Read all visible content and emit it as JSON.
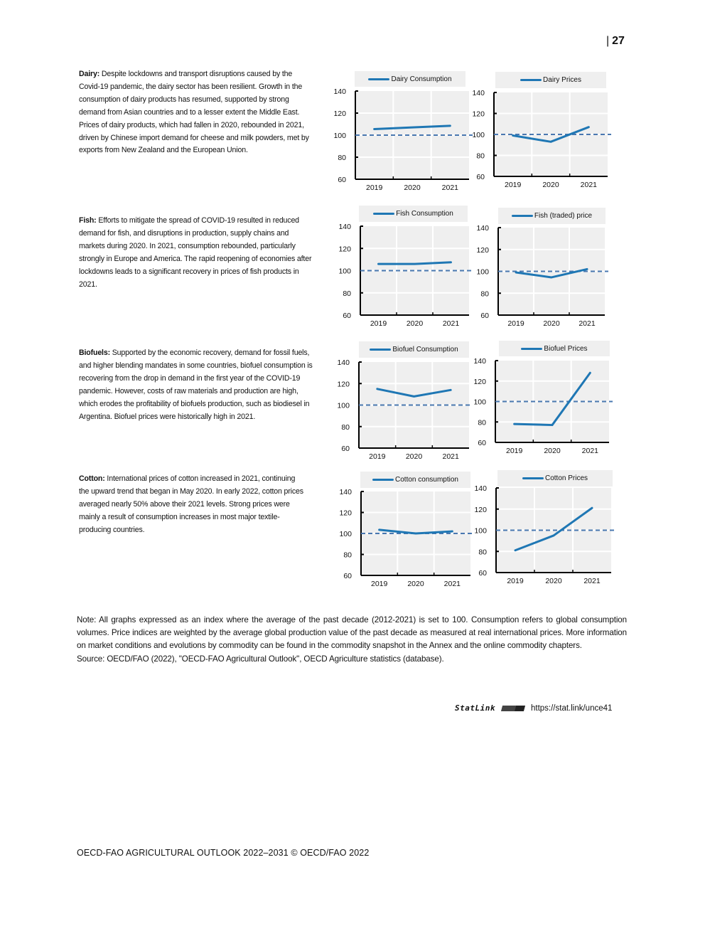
{
  "page_number": "27",
  "paragraphs": [
    {
      "lead": "Dairy:",
      "text": " Despite lockdowns and transport disruptions caused by the Covid-19 pandemic, the dairy sector has been resilient. Growth in the consumption of dairy products has resumed, supported by strong demand from Asian countries and to a lesser extent the Middle East. Prices of dairy products, which had fallen in 2020, rebounded in 2021, driven by Chinese import demand for cheese and milk powders, met by exports from New Zealand and the European Union."
    },
    {
      "lead": "Fish:",
      "text": " Efforts to mitigate the spread of COVID-19 resulted in reduced demand for fish, and disruptions in production, supply chains and markets during 2020. In 2021, consumption rebounded, particularly strongly in Europe and America. The rapid reopening of economies after lockdowns leads to a significant recovery in prices of fish products in 2021."
    },
    {
      "lead": "Biofuels:",
      "text": " Supported by the economic recovery, demand for fossil fuels, and higher blending mandates in some countries, biofuel consumption is recovering from the drop in demand in the first year of the COVID-19 pandemic. However,  costs of raw materials and production are high, which erodes the profitability of biofuels production, such as biodiesel in Argentina. Biofuel prices were historically high in 2021."
    },
    {
      "lead": "Cotton:",
      "text": " International prices of cotton increased in 2021, continuing the upward trend that began in May 2020. In early 2022, cotton prices averaged nearly 50% above their 2021 levels. Strong prices were mainly a result of consumption increases in most major textile-producing countries."
    }
  ],
  "chart_data": [
    {
      "type": "line",
      "legend": "Dairy Consumption",
      "categories": [
        "2019",
        "2020",
        "2021"
      ],
      "values": [
        105.5,
        107,
        108.5
      ],
      "reference_line": 100,
      "ylim": [
        60,
        140
      ],
      "yticks": [
        60,
        80,
        100,
        120,
        140
      ],
      "grid": true,
      "legend_placement": "top",
      "color": "#1f77b4",
      "reference_color": "#4a78b0"
    },
    {
      "type": "line",
      "legend": "Dairy Prices",
      "categories": [
        "2019",
        "2020",
        "2021"
      ],
      "values": [
        99,
        93,
        107
      ],
      "reference_line": 100,
      "ylim": [
        60,
        140
      ],
      "yticks": [
        60,
        80,
        100,
        120,
        140
      ],
      "grid": true,
      "legend_placement": "top",
      "color": "#1f77b4",
      "reference_color": "#4a78b0"
    },
    {
      "type": "line",
      "legend": "Fish Consumption",
      "categories": [
        "2019",
        "2020",
        "2021"
      ],
      "values": [
        106,
        106,
        107.5
      ],
      "reference_line": 100,
      "ylim": [
        60,
        140
      ],
      "yticks": [
        60,
        80,
        100,
        120,
        140
      ],
      "grid": true,
      "legend_placement": "top",
      "color": "#1f77b4",
      "reference_color": "#4a78b0"
    },
    {
      "type": "line",
      "legend": "Fish (traded) price",
      "categories": [
        "2019",
        "2020",
        "2021"
      ],
      "values": [
        99,
        94.5,
        102
      ],
      "reference_line": 100,
      "ylim": [
        60,
        140
      ],
      "yticks": [
        60,
        80,
        100,
        120,
        140
      ],
      "grid": true,
      "legend_placement": "top",
      "color": "#1f77b4",
      "reference_color": "#4a78b0"
    },
    {
      "type": "line",
      "legend": "Biofuel Consumption",
      "categories": [
        "2019",
        "2020",
        "2021"
      ],
      "values": [
        115,
        108,
        114
      ],
      "reference_line": 100,
      "ylim": [
        60,
        140
      ],
      "yticks": [
        60,
        80,
        100,
        120,
        140
      ],
      "grid": true,
      "legend_placement": "top",
      "color": "#1f77b4",
      "reference_color": "#4a78b0"
    },
    {
      "type": "line",
      "legend": "Biofuel Prices",
      "categories": [
        "2019",
        "2020",
        "2021"
      ],
      "values": [
        78,
        77,
        128
      ],
      "reference_line": 100,
      "ylim": [
        60,
        140
      ],
      "yticks": [
        60,
        80,
        100,
        120,
        140
      ],
      "grid": true,
      "legend_placement": "top",
      "color": "#1f77b4",
      "reference_color": "#4a78b0"
    },
    {
      "type": "line",
      "legend": "Cotton consumption",
      "categories": [
        "2019",
        "2020",
        "2021"
      ],
      "values": [
        103.5,
        100,
        102
      ],
      "reference_line": 100,
      "ylim": [
        60,
        140
      ],
      "yticks": [
        60,
        80,
        100,
        120,
        140
      ],
      "grid": true,
      "legend_placement": "top",
      "color": "#1f77b4",
      "reference_color": "#4a78b0"
    },
    {
      "type": "line",
      "legend": "Cotton Prices",
      "categories": [
        "2019",
        "2020",
        "2021"
      ],
      "values": [
        81,
        95,
        121
      ],
      "reference_line": 100,
      "ylim": [
        60,
        140
      ],
      "yticks": [
        60,
        80,
        100,
        120,
        140
      ],
      "grid": true,
      "legend_placement": "top",
      "color": "#1f77b4",
      "reference_color": "#4a78b0"
    }
  ],
  "note": "Note: All graphs expressed as an index where the average of the past decade (2012-2021) is set to 100. Consumption refers to global consumption volumes. Price indices are weighted by the average global production value of the past decade as measured at real international prices. More information on market conditions and evolutions by commodity can be found in the commodity snapshot in the Annex and the online commodity chapters.",
  "source": "Source: OECD/FAO (2022), \"OECD-FAO Agricultural Outlook\", OECD Agriculture statistics (database).",
  "statlink": {
    "label": "StatLink",
    "url": "https://stat.link/unce41"
  },
  "footer": "OECD-FAO AGRICULTURAL OUTLOOK 2022–2031 © OECD/FAO 2022"
}
